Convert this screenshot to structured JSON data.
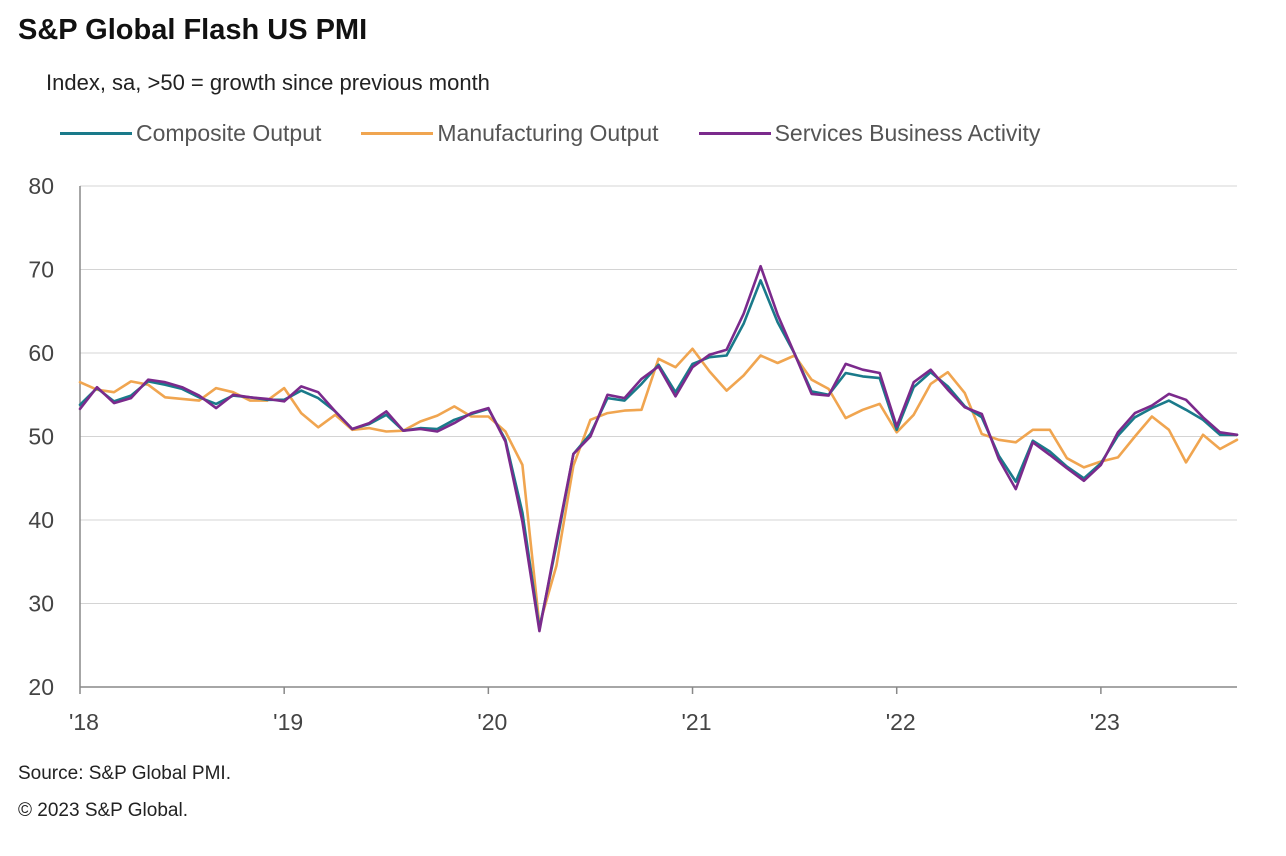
{
  "header": {
    "title": "S&P Global Flash US PMI",
    "subtitle": "Index, sa, >50 = growth  since previous  month"
  },
  "footer": {
    "source": "Source: S&P Global PMI.",
    "copyright": "© 2023 S&P Global."
  },
  "chart_data": {
    "type": "line",
    "title": "S&P Global Flash US PMI",
    "subtitle": "Index, sa, >50 = growth  since previous  month",
    "x_start": "2018-01",
    "x_end": "2023-09",
    "x_tick_labels": [
      "'18",
      "'19",
      "'20",
      "'21",
      "'22",
      "'23"
    ],
    "ylim": [
      20,
      80
    ],
    "y_ticks": [
      20,
      30,
      40,
      50,
      60,
      70,
      80
    ],
    "grid": "horizontal",
    "legend_position": "top",
    "series": [
      {
        "name": "Composite Output",
        "color": "#1a7a8a",
        "values": [
          53.8,
          55.8,
          54.2,
          54.9,
          56.6,
          56.2,
          55.7,
          54.7,
          53.9,
          54.9,
          54.7,
          54.4,
          54.4,
          55.5,
          54.6,
          53.0,
          50.9,
          51.5,
          52.6,
          50.7,
          51.0,
          50.9,
          52.0,
          52.7,
          53.3,
          49.6,
          40.9,
          27.0,
          37.0,
          47.9,
          50.3,
          54.6,
          54.3,
          56.3,
          58.6,
          55.3,
          58.7,
          59.5,
          59.7,
          63.5,
          68.7,
          63.7,
          59.9,
          55.4,
          55.0,
          57.6,
          57.2,
          57.0,
          50.8,
          55.9,
          57.7,
          56.0,
          53.6,
          52.3,
          47.7,
          44.6,
          49.5,
          48.2,
          46.4,
          45.0,
          46.8,
          50.1,
          52.3,
          53.4,
          54.3,
          53.2,
          52.0,
          50.2,
          50.2
        ],
        "labels_hidden": true
      },
      {
        "name": "Manufacturing Output",
        "color": "#f0a550",
        "values": [
          56.5,
          55.6,
          55.3,
          56.6,
          56.2,
          54.7,
          54.5,
          54.3,
          55.8,
          55.3,
          54.3,
          54.3,
          55.8,
          52.8,
          51.1,
          52.6,
          50.8,
          51.0,
          50.6,
          50.7,
          51.8,
          52.5,
          53.6,
          52.4,
          52.4,
          50.6,
          46.6,
          27.4,
          34.5,
          46.5,
          52.0,
          52.8,
          53.1,
          53.2,
          59.3,
          58.3,
          60.5,
          57.8,
          55.5,
          57.3,
          59.7,
          58.8,
          59.7,
          56.8,
          55.7,
          52.2,
          53.2,
          53.9,
          50.5,
          52.6,
          56.3,
          57.7,
          55.2,
          50.3,
          49.6,
          49.3,
          50.8,
          50.8,
          47.4,
          46.3,
          47.0,
          47.5,
          50.0,
          52.4,
          50.8,
          46.9,
          50.2,
          48.5,
          49.6
        ],
        "labels_hidden": true
      },
      {
        "name": "Services Business Activity",
        "color": "#7b2a8c",
        "values": [
          53.3,
          55.9,
          54.0,
          54.6,
          56.8,
          56.5,
          55.9,
          54.9,
          53.4,
          55.0,
          54.7,
          54.5,
          54.2,
          56.0,
          55.3,
          53.0,
          50.9,
          51.6,
          53.0,
          50.7,
          50.9,
          50.6,
          51.6,
          52.8,
          53.4,
          49.4,
          39.8,
          26.7,
          37.5,
          47.9,
          50.0,
          55.0,
          54.6,
          56.9,
          58.4,
          54.8,
          58.3,
          59.8,
          60.4,
          64.7,
          70.4,
          64.6,
          59.9,
          55.1,
          54.9,
          58.7,
          58.0,
          57.6,
          51.2,
          56.5,
          58.0,
          55.6,
          53.5,
          52.7,
          47.3,
          43.7,
          49.3,
          47.8,
          46.2,
          44.7,
          46.6,
          50.5,
          52.8,
          53.7,
          55.1,
          54.4,
          52.3,
          50.5,
          50.2
        ],
        "labels_hidden": true
      }
    ]
  }
}
